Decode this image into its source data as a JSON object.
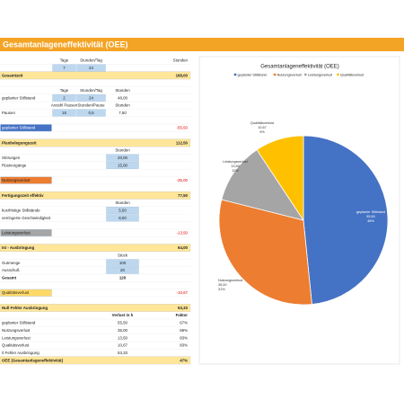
{
  "header": {
    "title": "Gesamtanlageneffektivität (OEE)"
  },
  "sheet": {
    "rows": [
      {
        "cells": [
          null,
          "Tage",
          "Stunden/Tag",
          null,
          null,
          "Stunden"
        ]
      },
      {
        "cells": [
          null,
          {
            "text": "7",
            "fill": "blue"
          },
          {
            "text": "24",
            "fill": "blue"
          },
          null,
          null,
          null
        ]
      },
      {
        "fill": "yellow",
        "bold": true,
        "cells": [
          "Gesamtzeit",
          null,
          null,
          null,
          null,
          "168,00"
        ]
      },
      null,
      {
        "cells": [
          null,
          "Tage",
          "Stunden/Tag",
          "Stunden",
          null,
          null
        ]
      },
      {
        "cells": [
          "geplanter Stillstand",
          {
            "text": "2",
            "fill": "blue"
          },
          {
            "text": "24",
            "fill": "blue"
          },
          "48,00",
          null,
          null
        ]
      },
      {
        "cells": [
          null,
          "Anzahl Pausen",
          "Stunden/Pause",
          "Stunden",
          null,
          null
        ]
      },
      {
        "cells": [
          "Pausen",
          {
            "text": "15",
            "fill": "blue"
          },
          {
            "text": "0,5",
            "fill": "blue"
          },
          "7,50",
          null,
          null
        ]
      },
      null,
      {
        "cells": [
          {
            "text": "geplanter Stillstand",
            "fill": "darkblue"
          },
          null,
          null,
          null,
          null,
          {
            "text": "-55,50",
            "color": "red"
          }
        ]
      },
      null,
      {
        "fill": "yellow",
        "bold": true,
        "cells": [
          "Planbelegungszeit",
          null,
          null,
          null,
          null,
          "112,50"
        ]
      },
      {
        "cells": [
          null,
          null,
          null,
          "Stunden",
          null,
          null
        ]
      },
      {
        "cells": [
          "Störungen",
          null,
          null,
          {
            "text": "20,00",
            "fill": "blue"
          },
          null,
          null
        ]
      },
      {
        "cells": [
          "Rüstvorgänge",
          null,
          null,
          {
            "text": "15,00",
            "fill": "blue"
          },
          null,
          null
        ]
      },
      null,
      {
        "cells": [
          {
            "text": "Nutzungsverlust",
            "fill": "orange"
          },
          null,
          null,
          null,
          null,
          {
            "text": "-35,00",
            "color": "red"
          }
        ]
      },
      null,
      {
        "fill": "yellow",
        "bold": true,
        "cells": [
          "Fertigungszeit effektiv",
          null,
          null,
          null,
          null,
          "77,50"
        ]
      },
      {
        "cells": [
          null,
          null,
          null,
          "Stunden",
          null,
          null
        ]
      },
      {
        "cells": [
          "kurzfristige Stillstände",
          null,
          null,
          {
            "text": "5,50",
            "fill": "blue"
          },
          null,
          null
        ]
      },
      {
        "cells": [
          "verringerte Geschwindigkeit",
          null,
          null,
          {
            "text": "8,00",
            "fill": "blue"
          },
          null,
          null
        ]
      },
      null,
      {
        "cells": [
          {
            "text": "Leistungsverlust",
            "fill": "gray"
          },
          null,
          null,
          null,
          null,
          {
            "text": "-13,50",
            "color": "red"
          }
        ]
      },
      null,
      {
        "fill": "yellow",
        "bold": true,
        "cells": [
          "Ist - Ausbringung",
          null,
          null,
          null,
          null,
          "64,00"
        ]
      },
      {
        "cells": [
          null,
          null,
          null,
          "Stück",
          null,
          null
        ]
      },
      {
        "cells": [
          "Gutmenge",
          null,
          null,
          {
            "text": "100",
            "fill": "blue"
          },
          null,
          null
        ]
      },
      {
        "cells": [
          "Ausschuß",
          null,
          null,
          {
            "text": "20",
            "fill": "blue"
          },
          null,
          null
        ]
      },
      {
        "bold": true,
        "cells": [
          "Gesamt",
          null,
          null,
          "120",
          null,
          null
        ]
      },
      null,
      {
        "cells": [
          {
            "text": "Qualitätsverlust",
            "fill": "gold"
          },
          null,
          null,
          null,
          null,
          {
            "text": "-10,67",
            "color": "red"
          }
        ]
      },
      null,
      {
        "fill": "yellow",
        "bold": true,
        "cells": [
          "Null Fehler Ausbringung",
          null,
          null,
          null,
          null,
          "53,33"
        ]
      },
      {
        "bold": true,
        "cells": [
          null,
          null,
          null,
          "Verlust in h",
          null,
          "Faktor"
        ]
      },
      {
        "cells": [
          "geplanter Stillstand",
          null,
          null,
          "55,50",
          null,
          "67%"
        ]
      },
      {
        "cells": [
          "Nutzungsverlust",
          null,
          null,
          "35,00",
          null,
          "69%"
        ]
      },
      {
        "cells": [
          "Leistungsverlust",
          null,
          null,
          "13,50",
          null,
          "83%"
        ]
      },
      {
        "cells": [
          "Qualitätsverlust",
          null,
          null,
          "10,67",
          null,
          "83%"
        ]
      },
      {
        "cells": [
          "0 Fehler Ausbringung",
          null,
          null,
          "53,33",
          null,
          null
        ]
      },
      {
        "fill": "yellow",
        "bold": true,
        "cells": [
          "OEE (Gesamtanlageneffektivität)",
          null,
          null,
          null,
          null,
          "47%"
        ]
      }
    ]
  },
  "chart_data": {
    "type": "pie",
    "title": "Gesamtanlageneffektivität (OEE)",
    "categories": [
      "geplanter Stillstand",
      "Nutzungsverlust",
      "Leistungsverlust",
      "Qualitätsverlust"
    ],
    "values": [
      55.5,
      35,
      13.5,
      10.67
    ],
    "value_labels": [
      "55,50",
      "35,00",
      "13,50",
      "10,67"
    ],
    "percent_labels": [
      "48%",
      "31%",
      "12%",
      "9%"
    ],
    "colors": [
      "#4472c4",
      "#ed7d31",
      "#a5a5a5",
      "#ffc000"
    ],
    "legend": "top"
  }
}
